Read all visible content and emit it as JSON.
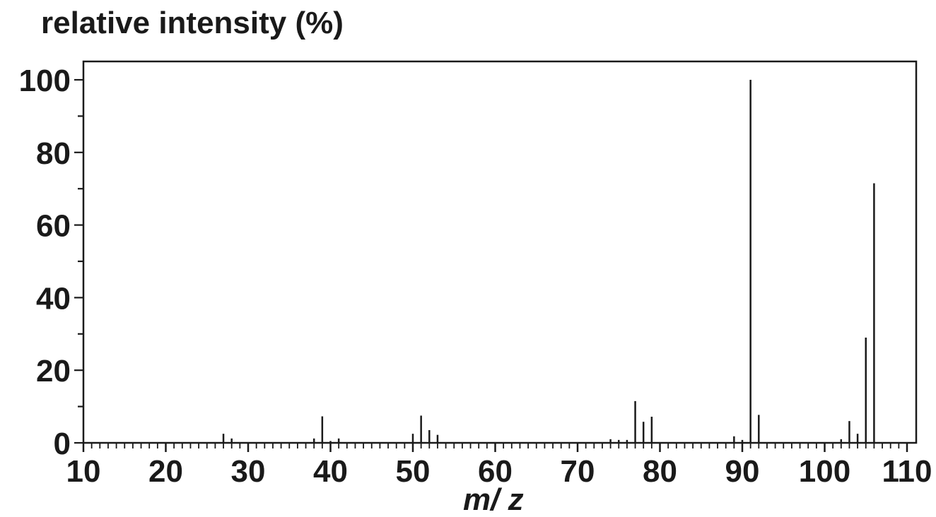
{
  "chart_data": {
    "type": "bar",
    "ylabel": "relative intensity (%)",
    "xlabel": "m/ z",
    "xlim": [
      10,
      110
    ],
    "ylim": [
      0,
      100
    ],
    "x_ticks": [
      10,
      20,
      30,
      40,
      50,
      60,
      70,
      80,
      90,
      100,
      110
    ],
    "y_ticks": [
      0,
      20,
      40,
      60,
      80,
      100
    ],
    "grid": false,
    "peaks": [
      {
        "mz": 27,
        "intensity": 2.5
      },
      {
        "mz": 28,
        "intensity": 1.2
      },
      {
        "mz": 38,
        "intensity": 1.2
      },
      {
        "mz": 39,
        "intensity": 7.3
      },
      {
        "mz": 40,
        "intensity": 0.5
      },
      {
        "mz": 41,
        "intensity": 1.2
      },
      {
        "mz": 50,
        "intensity": 2.5
      },
      {
        "mz": 51,
        "intensity": 7.5
      },
      {
        "mz": 52,
        "intensity": 3.5
      },
      {
        "mz": 53,
        "intensity": 2.2
      },
      {
        "mz": 74,
        "intensity": 1.0
      },
      {
        "mz": 75,
        "intensity": 0.8
      },
      {
        "mz": 76,
        "intensity": 0.8
      },
      {
        "mz": 77,
        "intensity": 11.5
      },
      {
        "mz": 78,
        "intensity": 5.8
      },
      {
        "mz": 79,
        "intensity": 7.2
      },
      {
        "mz": 89,
        "intensity": 1.8
      },
      {
        "mz": 90,
        "intensity": 0.8
      },
      {
        "mz": 91,
        "intensity": 100
      },
      {
        "mz": 92,
        "intensity": 7.7
      },
      {
        "mz": 102,
        "intensity": 1.0
      },
      {
        "mz": 103,
        "intensity": 6.0
      },
      {
        "mz": 104,
        "intensity": 2.5
      },
      {
        "mz": 105,
        "intensity": 29
      },
      {
        "mz": 106,
        "intensity": 71.5
      }
    ]
  }
}
